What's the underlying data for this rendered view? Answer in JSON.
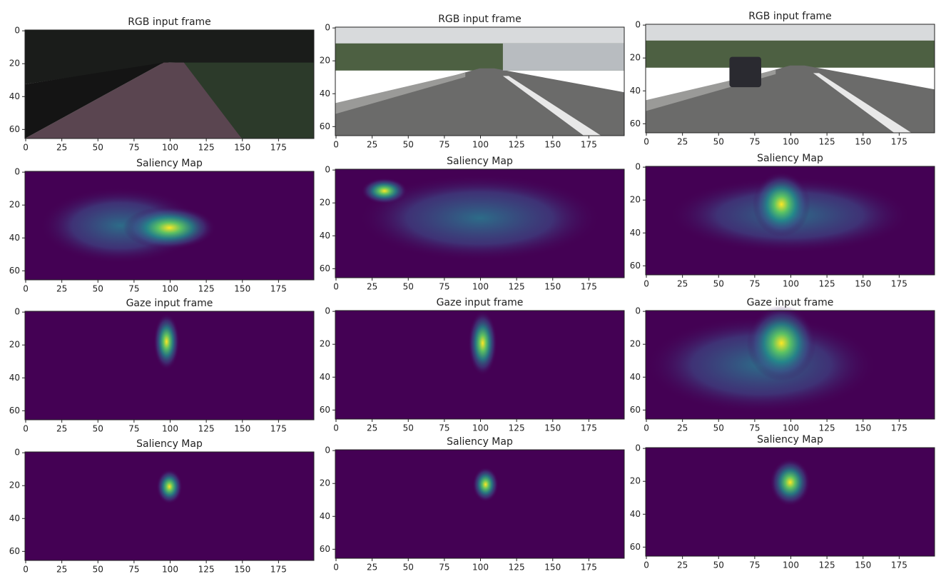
{
  "chart_data": [
    {
      "type": "image",
      "title": "RGB input frame",
      "xlim": [
        -0.5,
        199.5
      ],
      "ylim": [
        -0.5,
        65.5
      ],
      "y_inverted": true,
      "xticks": [
        0,
        25,
        50,
        75,
        100,
        125,
        150,
        175
      ],
      "yticks": [
        0,
        20,
        40,
        60
      ]
    },
    {
      "type": "image",
      "title": "RGB input frame",
      "xlim": [
        -0.5,
        199.5
      ],
      "ylim": [
        -0.5,
        65.5
      ],
      "y_inverted": true,
      "xticks": [
        0,
        25,
        50,
        75,
        100,
        125,
        150,
        175
      ],
      "yticks": [
        0,
        20,
        40,
        60
      ]
    },
    {
      "type": "image",
      "title": "RGB input frame",
      "xlim": [
        -0.5,
        199.5
      ],
      "ylim": [
        -0.5,
        65.5
      ],
      "y_inverted": true,
      "xticks": [
        0,
        25,
        50,
        75,
        100,
        125,
        150,
        175
      ],
      "yticks": [
        0,
        20,
        40,
        60
      ]
    },
    {
      "type": "image",
      "title": "Saliency Map",
      "xlim": [
        -0.5,
        199.5
      ],
      "ylim": [
        -0.5,
        65.5
      ],
      "y_inverted": true,
      "xticks": [
        0,
        25,
        50,
        75,
        100,
        125,
        150,
        175
      ],
      "yticks": [
        0,
        20,
        40,
        60
      ]
    },
    {
      "type": "image",
      "title": "Saliency Map",
      "xlim": [
        -0.5,
        199.5
      ],
      "ylim": [
        -0.5,
        65.5
      ],
      "y_inverted": true,
      "xticks": [
        0,
        25,
        50,
        75,
        100,
        125,
        150,
        175
      ],
      "yticks": [
        0,
        20,
        40,
        60
      ]
    },
    {
      "type": "image",
      "title": "Saliency Map",
      "xlim": [
        -0.5,
        199.5
      ],
      "ylim": [
        -0.5,
        65.5
      ],
      "y_inverted": true,
      "xticks": [
        0,
        25,
        50,
        75,
        100,
        125,
        150,
        175
      ],
      "yticks": [
        0,
        20,
        40,
        60
      ]
    },
    {
      "type": "image",
      "title": "Gaze input frame",
      "xlim": [
        -0.5,
        199.5
      ],
      "ylim": [
        -0.5,
        65.5
      ],
      "y_inverted": true,
      "xticks": [
        0,
        25,
        50,
        75,
        100,
        125,
        150,
        175
      ],
      "yticks": [
        0,
        20,
        40,
        60
      ]
    },
    {
      "type": "image",
      "title": "Gaze input frame",
      "xlim": [
        -0.5,
        199.5
      ],
      "ylim": [
        -0.5,
        65.5
      ],
      "y_inverted": true,
      "xticks": [
        0,
        25,
        50,
        75,
        100,
        125,
        150,
        175
      ],
      "yticks": [
        0,
        20,
        40,
        60
      ]
    },
    {
      "type": "image",
      "title": "Gaze input frame",
      "xlim": [
        -0.5,
        199.5
      ],
      "ylim": [
        -0.5,
        65.5
      ],
      "y_inverted": true,
      "xticks": [
        0,
        25,
        50,
        75,
        100,
        125,
        150,
        175
      ],
      "yticks": [
        0,
        20,
        40,
        60
      ]
    },
    {
      "type": "image",
      "title": "Saliency Map",
      "xlim": [
        -0.5,
        199.5
      ],
      "ylim": [
        -0.5,
        65.5
      ],
      "y_inverted": true,
      "xticks": [
        0,
        25,
        50,
        75,
        100,
        125,
        150,
        175
      ],
      "yticks": [
        0,
        20,
        40,
        60
      ]
    },
    {
      "type": "image",
      "title": "Saliency Map",
      "xlim": [
        -0.5,
        199.5
      ],
      "ylim": [
        -0.5,
        65.5
      ],
      "y_inverted": true,
      "xticks": [
        0,
        25,
        50,
        75,
        100,
        125,
        150,
        175
      ],
      "yticks": [
        0,
        20,
        40,
        60
      ]
    },
    {
      "type": "image",
      "title": "Saliency Map",
      "xlim": [
        -0.5,
        199.5
      ],
      "ylim": [
        -0.5,
        65.5
      ],
      "y_inverted": true,
      "xticks": [
        0,
        25,
        50,
        75,
        100,
        125,
        150,
        175
      ],
      "yticks": [
        0,
        20,
        40,
        60
      ]
    }
  ]
}
